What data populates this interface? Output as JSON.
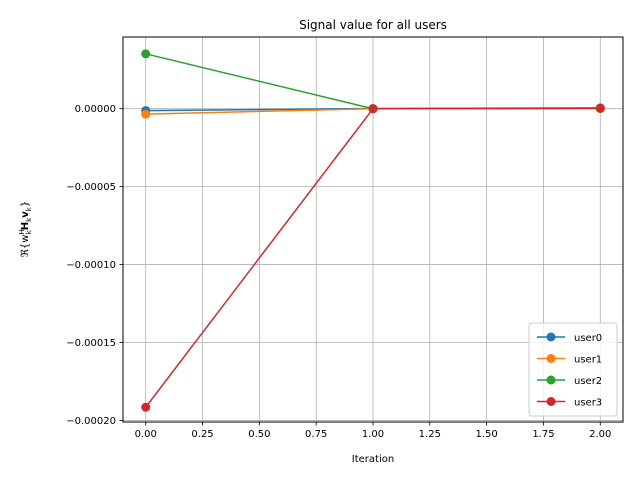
{
  "chart_data": {
    "type": "line",
    "title": "Signal value for all users",
    "xlabel": "Iteration",
    "ylabel_main": "ℜ{w",
    "ylabel_sup": "H",
    "ylabel_sub1": "k",
    "ylabel_mid": "H",
    "ylabel_sub2": "k",
    "ylabel_v": "v",
    "ylabel_sub3": "k",
    "ylabel_end": "}",
    "xlim": [
      -0.1,
      2.1
    ],
    "ylim": [
      -0.000201,
      4.6e-05
    ],
    "xticks": [
      0.0,
      0.25,
      0.5,
      0.75,
      1.0,
      1.25,
      1.5,
      1.75,
      2.0
    ],
    "xtick_labels": [
      "0.00",
      "0.25",
      "0.50",
      "0.75",
      "1.00",
      "1.25",
      "1.50",
      "1.75",
      "2.00"
    ],
    "yticks": [
      0.0,
      -5e-05,
      -0.0001,
      -0.00015,
      -0.0002
    ],
    "ytick_labels": [
      "0.00000",
      "−0.00005",
      "−0.00010",
      "−0.00015",
      "−0.00020"
    ],
    "grid": true,
    "legend_position": "lower-right",
    "x": [
      0,
      1,
      2
    ],
    "series": [
      {
        "name": "user0",
        "color": "#1f77b4",
        "values": [
          -1.2e-06,
          1e-07,
          5e-07
        ]
      },
      {
        "name": "user1",
        "color": "#ff7f0e",
        "values": [
          -3.5e-06,
          0.0,
          1e-07
        ]
      },
      {
        "name": "user2",
        "color": "#2ca02c",
        "values": [
          3.52e-05,
          0.0,
          2e-07
        ]
      },
      {
        "name": "user3",
        "color": "#d62728",
        "values": [
          -0.0001915,
          0.0,
          3e-07
        ]
      }
    ]
  }
}
